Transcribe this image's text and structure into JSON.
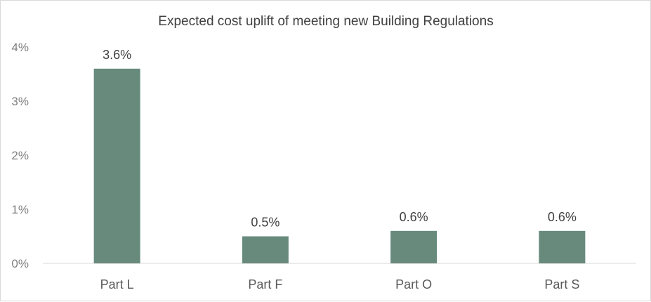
{
  "chart_data": {
    "type": "bar",
    "title": "Expected cost uplift of meeting new Building Regulations",
    "xlabel": "",
    "ylabel": "",
    "categories": [
      "Part L",
      "Part F",
      "Part O",
      "Part S"
    ],
    "values": [
      3.6,
      0.5,
      0.6,
      0.6
    ],
    "data_labels": [
      "3.6%",
      "0.5%",
      "0.6%",
      "0.6%"
    ],
    "ylim": [
      0,
      4
    ],
    "yticks": [
      0,
      1,
      2,
      3,
      4
    ],
    "ytick_labels": [
      "0%",
      "1%",
      "2%",
      "3%",
      "4%"
    ],
    "bar_color": "#678a7c",
    "grid": false,
    "legend": "none"
  }
}
